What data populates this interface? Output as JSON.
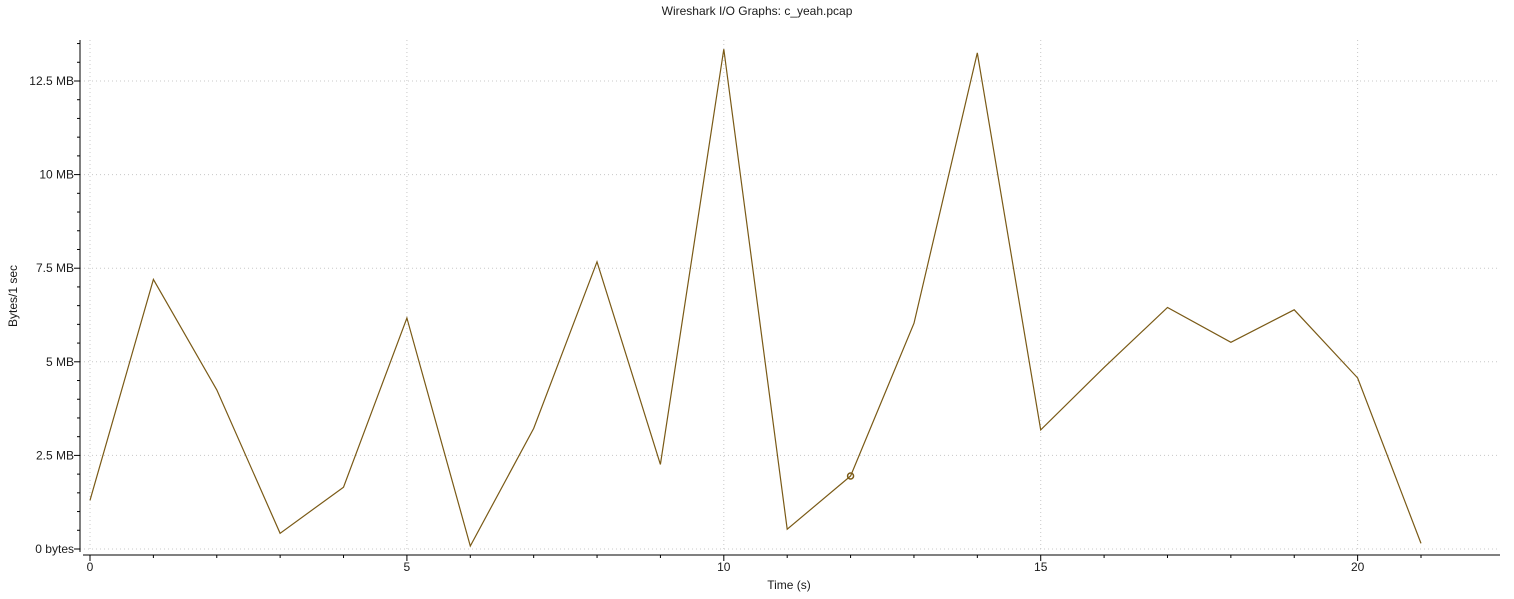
{
  "window": {
    "title": "Wireshark I/O Graphs: c_yeah.pcap"
  },
  "chart_data": {
    "type": "line",
    "title": "Wireshark I/O Graphs: c_yeah.pcap",
    "xlabel": "Time (s)",
    "ylabel": "Bytes/1 sec",
    "xlim": [
      -0.1,
      21.15
    ],
    "ylim": [
      -0.05,
      13.55
    ],
    "x_ticks": [
      0,
      5,
      10,
      15,
      20
    ],
    "x_tick_labels": [
      "0",
      "5",
      "10",
      "15",
      "20"
    ],
    "y_ticks": [
      0,
      2.5,
      5,
      7.5,
      10,
      12.5
    ],
    "y_tick_labels": [
      "0 bytes",
      "2.5 MB",
      "5 MB",
      "7.5 MB",
      "10 MB",
      "12.5 MB"
    ],
    "y_units": "MB",
    "grid": true,
    "series": [
      {
        "color": "#7a5a16",
        "x": [
          0,
          1,
          2,
          3,
          4,
          5,
          6,
          7,
          8,
          9,
          10,
          11,
          12,
          13,
          14,
          15,
          16,
          17,
          18,
          19,
          20,
          21
        ],
        "values": [
          1.3,
          7.2,
          4.25,
          0.42,
          1.65,
          6.17,
          0.08,
          3.22,
          7.67,
          2.26,
          13.35,
          0.53,
          1.95,
          6.03,
          13.25,
          3.18,
          4.85,
          6.45,
          5.52,
          6.39,
          4.57,
          0.15
        ]
      }
    ],
    "highlighted_point": {
      "series": 0,
      "index": 12
    }
  }
}
